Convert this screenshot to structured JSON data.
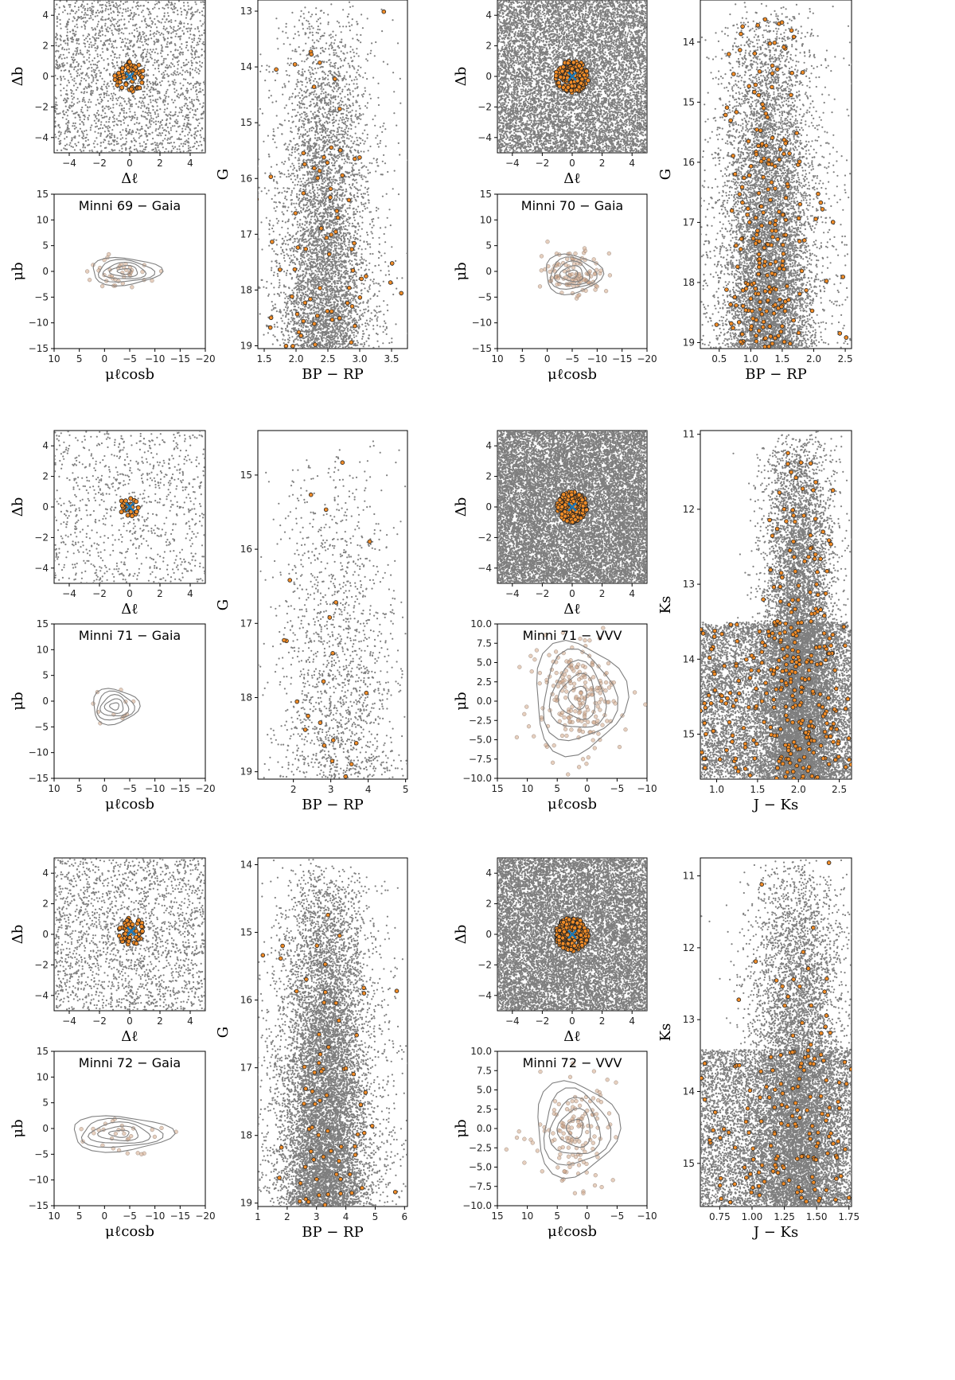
{
  "colors": {
    "field": "#7f7f7f",
    "member_fill": "#f08c28",
    "member_edge": "#222222",
    "pm_member": "#d2a888",
    "center_marker": "#1f77b4",
    "contour": "#7f7f7f"
  },
  "chart_data": [
    {
      "id": "m69_sky",
      "type": "scatter",
      "role": "sky",
      "row": 0,
      "col": 0,
      "xlabel": "Δℓ",
      "ylabel": "Δb",
      "xlim": [
        -5,
        5
      ],
      "ylim": [
        -5,
        5
      ],
      "xticks": [
        -4,
        -2,
        0,
        2,
        4
      ],
      "yticks": [
        -4,
        -2,
        0,
        2,
        4
      ],
      "field_count": 2200,
      "member_count": 60,
      "member_radius": 1.0,
      "center": [
        0,
        0
      ]
    },
    {
      "id": "m69_cmd",
      "type": "scatter",
      "role": "cmd_gaia",
      "row": 0,
      "col": 1,
      "xlabel": "BP − RP",
      "ylabel": "G",
      "xlim": [
        1.4,
        3.75
      ],
      "ylim": [
        19.05,
        12.8
      ],
      "xticks": [
        1.5,
        2.0,
        2.5,
        3.0,
        3.5
      ],
      "yticks": [
        13,
        14,
        15,
        16,
        17,
        18,
        19
      ],
      "field_count": 5200,
      "member_count": 75
    },
    {
      "id": "m69_pm",
      "type": "scatter",
      "role": "pm",
      "row": 0,
      "col": 0,
      "title": "Minni 69  −  Gaia",
      "xlabel": "μℓcosb",
      "ylabel": "μb",
      "xlim": [
        10,
        -20
      ],
      "ylim": [
        -15,
        15
      ],
      "xticks": [
        10,
        5,
        0,
        -5,
        -10,
        -15,
        -20
      ],
      "yticks": [
        -15,
        -10,
        -5,
        0,
        5,
        10,
        15
      ],
      "center": [
        -4,
        0
      ],
      "spread": [
        3.6,
        1.4
      ],
      "member_count": 40
    },
    {
      "id": "m70_sky",
      "type": "scatter",
      "role": "sky",
      "row": 0,
      "col": 2,
      "xlabel": "Δℓ",
      "ylabel": "Δb",
      "xlim": [
        -5,
        5
      ],
      "ylim": [
        -5,
        5
      ],
      "xticks": [
        -4,
        -2,
        0,
        2,
        4
      ],
      "yticks": [
        -4,
        -2,
        0,
        2,
        4
      ],
      "field_count": 9000,
      "member_count": 160,
      "member_radius": 1.1,
      "center": [
        0,
        0
      ]
    },
    {
      "id": "m70_cmd",
      "type": "scatter",
      "role": "cmd_gaia",
      "row": 0,
      "col": 3,
      "xlabel": "BP − RP",
      "ylabel": "G",
      "xlim": [
        0.2,
        2.6
      ],
      "ylim": [
        19.1,
        13.3
      ],
      "xticks": [
        0.5,
        1.0,
        1.5,
        2.0,
        2.5
      ],
      "yticks": [
        14,
        15,
        16,
        17,
        18,
        19
      ],
      "field_count": 8000,
      "member_count": 230
    },
    {
      "id": "m70_pm",
      "type": "scatter",
      "role": "pm",
      "row": 0,
      "col": 2,
      "title": "Minni 70  −  Gaia",
      "xlabel": "μℓcosb",
      "ylabel": "μb",
      "xlim": [
        10,
        -20
      ],
      "ylim": [
        -15,
        15
      ],
      "xticks": [
        10,
        5,
        0,
        -5,
        -10,
        -15,
        -20
      ],
      "yticks": [
        -15,
        -10,
        -5,
        0,
        5,
        10,
        15
      ],
      "center": [
        -5,
        -0.5
      ],
      "spread": [
        3.0,
        2.0
      ],
      "member_count": 110
    },
    {
      "id": "m71_sky",
      "type": "scatter",
      "role": "sky",
      "row": 1,
      "col": 0,
      "xlabel": "Δℓ",
      "ylabel": "Δb",
      "xlim": [
        -5,
        5
      ],
      "ylim": [
        -5,
        5
      ],
      "xticks": [
        -4,
        -2,
        0,
        2,
        4
      ],
      "yticks": [
        -4,
        -2,
        0,
        2,
        4
      ],
      "field_count": 900,
      "member_count": 28,
      "member_radius": 0.7,
      "center": [
        0,
        0
      ]
    },
    {
      "id": "m71_cmd",
      "type": "scatter",
      "role": "cmd_gaia_sparse",
      "row": 1,
      "col": 1,
      "xlabel": "BP − RP",
      "ylabel": "G",
      "xlim": [
        1.05,
        5.05
      ],
      "ylim": [
        19.1,
        14.4
      ],
      "xticks": [
        2,
        3,
        4,
        5
      ],
      "yticks": [
        15,
        16,
        17,
        18,
        19
      ],
      "field_count": 1600,
      "member_count": 22
    },
    {
      "id": "m71_pm",
      "type": "scatter",
      "role": "pm",
      "row": 1,
      "col": 0,
      "title": "Minni 71  −  Gaia",
      "xlabel": "μℓcosb",
      "ylabel": "μb",
      "xlim": [
        10,
        -20
      ],
      "ylim": [
        -15,
        15
      ],
      "xticks": [
        10,
        5,
        0,
        -5,
        -10,
        -15,
        -20
      ],
      "yticks": [
        -15,
        -10,
        -5,
        0,
        5,
        10,
        15
      ],
      "center": [
        -2,
        -1
      ],
      "spread": [
        2.4,
        1.8
      ],
      "member_count": 12
    },
    {
      "id": "m71_vsky",
      "type": "scatter",
      "role": "sky",
      "row": 1,
      "col": 2,
      "xlabel": "Δℓ",
      "ylabel": "Δb",
      "xlim": [
        -5,
        5
      ],
      "ylim": [
        -5,
        5
      ],
      "xticks": [
        -4,
        -2,
        0,
        2,
        4
      ],
      "yticks": [
        -4,
        -2,
        0,
        2,
        4
      ],
      "field_count": 14000,
      "member_count": 220,
      "member_radius": 1.0,
      "center": [
        0,
        0
      ]
    },
    {
      "id": "m71_vcmd",
      "type": "scatter",
      "role": "cmd_vvv",
      "row": 1,
      "col": 3,
      "xlabel": "J − Ks",
      "ylabel": "Ks",
      "xlim": [
        0.8,
        2.65
      ],
      "ylim": [
        15.6,
        10.95
      ],
      "xticks": [
        1.0,
        1.5,
        2.0,
        2.5
      ],
      "yticks": [
        11,
        12,
        13,
        14,
        15
      ],
      "field_count": 16000,
      "member_count": 330
    },
    {
      "id": "m71_vpm",
      "type": "scatter",
      "role": "pm_vvv",
      "row": 1,
      "col": 2,
      "title": "Minni 71  −  VVV",
      "xlabel": "μℓcosb",
      "ylabel": "μb",
      "xlim": [
        15,
        -10
      ],
      "ylim": [
        -10,
        10
      ],
      "xticks": [
        15,
        10,
        5,
        0,
        -5,
        -10
      ],
      "yticks": [
        -10.0,
        -7.5,
        -5.0,
        -2.5,
        0.0,
        2.5,
        5.0,
        7.5,
        10.0
      ],
      "center": [
        1.5,
        0.5
      ],
      "spread": [
        4.0,
        3.8
      ],
      "member_count": 220
    },
    {
      "id": "m72_sky",
      "type": "scatter",
      "role": "sky",
      "row": 2,
      "col": 0,
      "xlabel": "Δℓ",
      "ylabel": "Δb",
      "xlim": [
        -5,
        5
      ],
      "ylim": [
        -5,
        5
      ],
      "xticks": [
        -4,
        -2,
        0,
        2,
        4
      ],
      "yticks": [
        -4,
        -2,
        0,
        2,
        4
      ],
      "field_count": 2000,
      "member_count": 55,
      "member_radius": 0.9,
      "center": [
        0.1,
        0.2
      ]
    },
    {
      "id": "m72_cmd",
      "type": "scatter",
      "role": "cmd_gaia",
      "row": 2,
      "col": 1,
      "xlabel": "BP − RP",
      "ylabel": "G",
      "xlim": [
        1.0,
        6.1
      ],
      "ylim": [
        19.05,
        13.9
      ],
      "xticks": [
        1,
        2,
        3,
        4,
        5,
        6
      ],
      "yticks": [
        14,
        15,
        16,
        17,
        18,
        19
      ],
      "field_count": 9500,
      "member_count": 70
    },
    {
      "id": "m72_pm",
      "type": "scatter",
      "role": "pm",
      "row": 2,
      "col": 0,
      "title": "Minni 72  −  Gaia",
      "xlabel": "μℓcosb",
      "ylabel": "μb",
      "xlim": [
        10,
        -20
      ],
      "ylim": [
        -15,
        15
      ],
      "xticks": [
        10,
        5,
        0,
        -5,
        -10,
        -15,
        -20
      ],
      "yticks": [
        -15,
        -10,
        -5,
        0,
        5,
        10,
        15
      ],
      "center": [
        -3,
        -1
      ],
      "spread": [
        5.2,
        1.8
      ],
      "member_count": 30
    },
    {
      "id": "m72_vsky",
      "type": "scatter",
      "role": "sky",
      "row": 2,
      "col": 2,
      "xlabel": "Δℓ",
      "ylabel": "Δb",
      "xlim": [
        -5,
        5
      ],
      "ylim": [
        -5,
        5
      ],
      "xticks": [
        -4,
        -2,
        0,
        2,
        4
      ],
      "yticks": [
        -4,
        -2,
        0,
        2,
        4
      ],
      "field_count": 12000,
      "member_count": 220,
      "member_radius": 1.1,
      "center": [
        0,
        0
      ]
    },
    {
      "id": "m72_vcmd",
      "type": "scatter",
      "role": "cmd_vvv_b",
      "row": 2,
      "col": 3,
      "xlabel": "J − Ks",
      "ylabel": "Ks",
      "xlim": [
        0.6,
        1.77
      ],
      "ylim": [
        15.6,
        10.75
      ],
      "xticks": [
        0.75,
        1.0,
        1.25,
        1.5,
        1.75
      ],
      "yticks": [
        11,
        12,
        13,
        14,
        15
      ],
      "field_count": 13000,
      "member_count": 160
    },
    {
      "id": "m72_vpm",
      "type": "scatter",
      "role": "pm_vvv",
      "row": 2,
      "col": 2,
      "title": "Minni 72  −  VVV",
      "xlabel": "μℓcosb",
      "ylabel": "μb",
      "xlim": [
        15,
        -10
      ],
      "ylim": [
        -10,
        10
      ],
      "xticks": [
        15,
        10,
        5,
        0,
        -5,
        -10
      ],
      "yticks": [
        -10.0,
        -7.5,
        -5.0,
        -2.5,
        0.0,
        2.5,
        5.0,
        7.5,
        10.0
      ],
      "center": [
        2,
        0
      ],
      "spread": [
        3.6,
        3.2
      ],
      "member_count": 140
    }
  ]
}
